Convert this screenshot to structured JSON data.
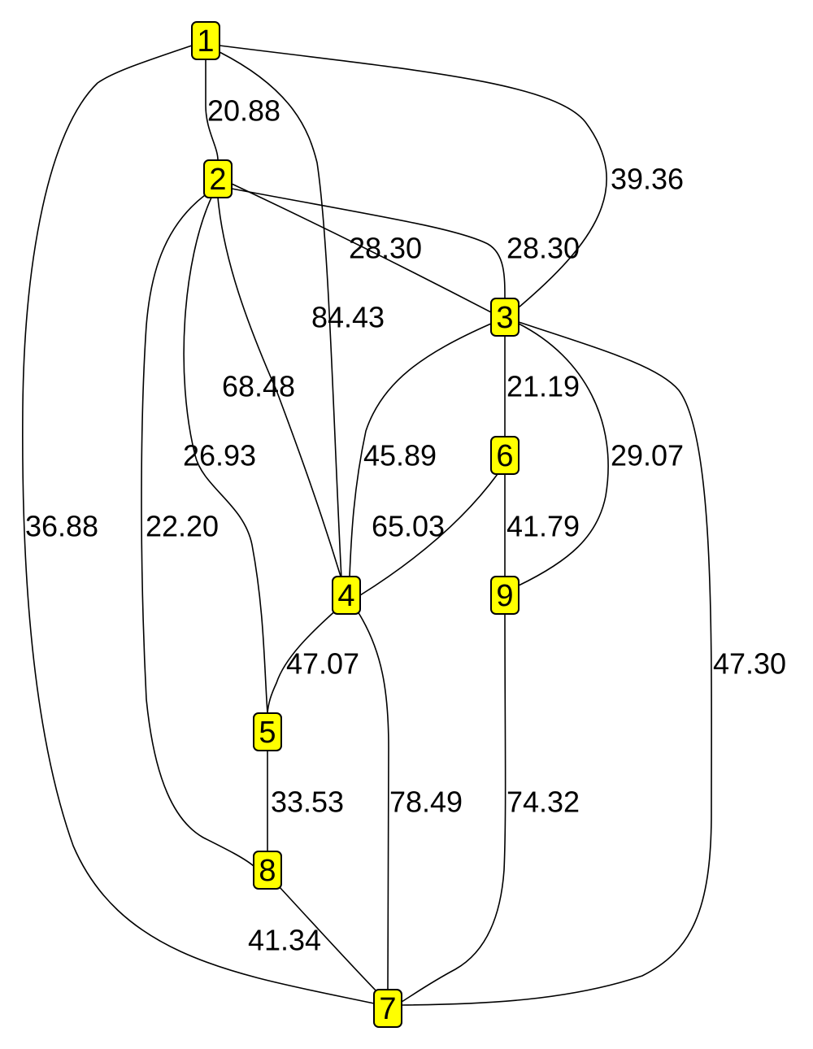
{
  "graph": {
    "node_fill": "#ffff00",
    "edge_color": "#000000",
    "nodes": [
      {
        "id": "1",
        "label": "1"
      },
      {
        "id": "2",
        "label": "2"
      },
      {
        "id": "3",
        "label": "3"
      },
      {
        "id": "4",
        "label": "4"
      },
      {
        "id": "5",
        "label": "5"
      },
      {
        "id": "6",
        "label": "6"
      },
      {
        "id": "7",
        "label": "7"
      },
      {
        "id": "8",
        "label": "8"
      },
      {
        "id": "9",
        "label": "9"
      }
    ],
    "edges": [
      {
        "from": "1",
        "to": "2",
        "weight": "20.88"
      },
      {
        "from": "1",
        "to": "3",
        "weight": "39.36"
      },
      {
        "from": "1",
        "to": "4",
        "weight": "84.43"
      },
      {
        "from": "1",
        "to": "7",
        "weight": "36.88"
      },
      {
        "from": "2",
        "to": "3",
        "weight": "28.30"
      },
      {
        "from": "2",
        "to": "3",
        "weight": "28.30"
      },
      {
        "from": "2",
        "to": "4",
        "weight": "68.48"
      },
      {
        "from": "2",
        "to": "5",
        "weight": "26.93"
      },
      {
        "from": "2",
        "to": "8",
        "weight": "22.20"
      },
      {
        "from": "3",
        "to": "6",
        "weight": "21.19"
      },
      {
        "from": "3",
        "to": "4",
        "weight": "45.89"
      },
      {
        "from": "3",
        "to": "9",
        "weight": "29.07"
      },
      {
        "from": "3",
        "to": "7",
        "weight": "47.30"
      },
      {
        "from": "6",
        "to": "4",
        "weight": "65.03"
      },
      {
        "from": "6",
        "to": "9",
        "weight": "41.79"
      },
      {
        "from": "4",
        "to": "5",
        "weight": "47.07"
      },
      {
        "from": "4",
        "to": "7",
        "weight": "78.49"
      },
      {
        "from": "9",
        "to": "7",
        "weight": "74.32"
      },
      {
        "from": "5",
        "to": "8",
        "weight": "33.53"
      },
      {
        "from": "8",
        "to": "7",
        "weight": "41.34"
      }
    ]
  }
}
